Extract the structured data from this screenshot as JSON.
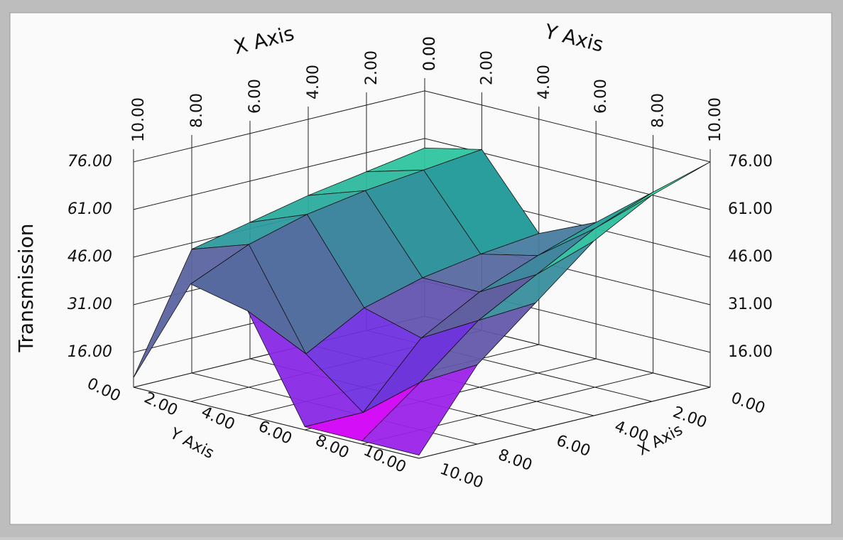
{
  "chart_data": {
    "type": "surface",
    "x_label": "X Axis",
    "y_label": "Y Axis",
    "z_label": "Transmission",
    "x": [
      0,
      2,
      4,
      6,
      8,
      10
    ],
    "y": [
      0,
      2,
      4,
      6,
      8,
      10
    ],
    "z": [
      [
        58,
        62,
        40,
        48,
        62,
        76
      ],
      [
        55,
        60,
        38,
        42,
        55,
        70
      ],
      [
        52,
        58,
        35,
        35,
        45,
        60
      ],
      [
        48,
        55,
        30,
        25,
        35,
        45
      ],
      [
        44,
        50,
        20,
        6,
        20,
        30
      ],
      [
        8,
        42,
        38,
        6,
        6,
        6
      ]
    ],
    "xlim": [
      0,
      10
    ],
    "ylim": [
      0,
      10
    ],
    "zlim": [
      5,
      80
    ],
    "xticks": [
      {
        "value": 0,
        "label": "0.00"
      },
      {
        "value": 2,
        "label": "2.00"
      },
      {
        "value": 4,
        "label": "4.00"
      },
      {
        "value": 6,
        "label": "6.00"
      },
      {
        "value": 8,
        "label": "8.00"
      },
      {
        "value": 10,
        "label": "10.00"
      }
    ],
    "yticks": [
      {
        "value": 0,
        "label": "0.00"
      },
      {
        "value": 2,
        "label": "2.00"
      },
      {
        "value": 4,
        "label": "4.00"
      },
      {
        "value": 6,
        "label": "6.00"
      },
      {
        "value": 8,
        "label": "8.00"
      },
      {
        "value": 10,
        "label": "10.00"
      }
    ],
    "zticks": [
      {
        "value": 16,
        "label": "16.00"
      },
      {
        "value": 31,
        "label": "31.00"
      },
      {
        "value": 46,
        "label": "46.00"
      },
      {
        "value": 61,
        "label": "61.00"
      },
      {
        "value": 76,
        "label": "76.00"
      }
    ],
    "colormap": [
      "#ff00ff",
      "#7030e0",
      "#6060a0",
      "#2a9d9d",
      "#30e0a0",
      "#50e050"
    ],
    "grid": true
  }
}
